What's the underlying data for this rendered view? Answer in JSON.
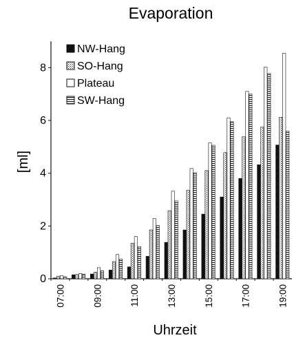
{
  "chart_data": {
    "type": "bar",
    "title": "Evaporation",
    "xlabel": "Uhrzeit",
    "ylabel": "[ml]",
    "ylim": [
      0,
      9
    ],
    "yticks": [
      0,
      2,
      4,
      6,
      8
    ],
    "categories": [
      "07:00",
      "08:00",
      "09:00",
      "10:00",
      "11:00",
      "12:00",
      "13:00",
      "14:00",
      "15:00",
      "16:00",
      "17:00",
      "18:00",
      "19:00"
    ],
    "xtick_labels": [
      "07:00",
      "09:00",
      "11:00",
      "13:00",
      "15:00",
      "17:00",
      "19:00"
    ],
    "legend_position": "top-left",
    "series": [
      {
        "name": "NW-Hang",
        "pattern": "solid-black",
        "values": [
          0.03,
          0.15,
          0.18,
          0.33,
          0.45,
          0.85,
          1.38,
          1.85,
          2.45,
          3.1,
          3.8,
          4.32,
          5.07
        ]
      },
      {
        "name": "SO-Hang",
        "pattern": "crosshatch",
        "values": [
          0.1,
          0.16,
          0.25,
          0.65,
          1.35,
          1.85,
          2.58,
          3.35,
          4.1,
          4.78,
          5.38,
          5.75,
          6.12
        ]
      },
      {
        "name": "Plateau",
        "pattern": "white",
        "values": [
          0.12,
          0.2,
          0.42,
          0.92,
          1.6,
          2.28,
          3.32,
          4.18,
          5.15,
          6.1,
          7.1,
          8.02,
          8.55
        ]
      },
      {
        "name": "SW-Hang",
        "pattern": "horizontal-lines",
        "values": [
          0.07,
          0.18,
          0.3,
          0.75,
          1.22,
          2.02,
          2.95,
          4.02,
          5.06,
          5.95,
          7.0,
          7.78,
          5.6
        ]
      }
    ]
  }
}
